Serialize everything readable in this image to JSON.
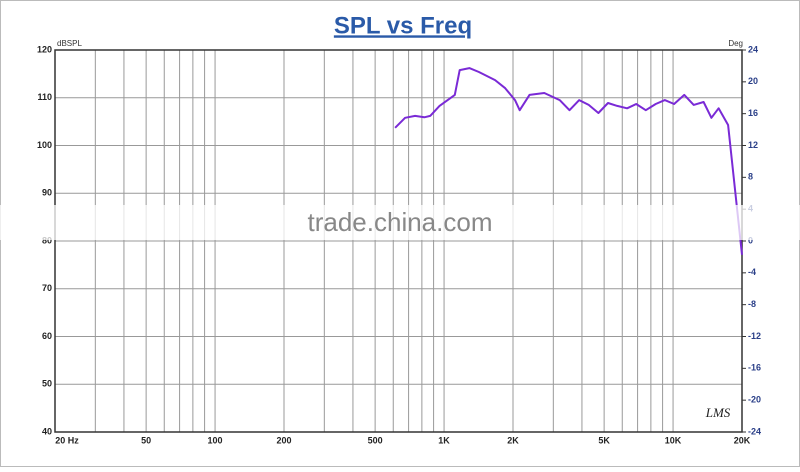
{
  "chart_data": {
    "type": "line",
    "title": "SPL vs Freq",
    "ylabel": "dBSPL",
    "y2label": "Deg",
    "watermark": "trade.china.com",
    "logo": "LMS",
    "xscale": "log",
    "xlim": [
      20,
      20000
    ],
    "xticks": [
      {
        "value": 20,
        "label": "20 Hz"
      },
      50,
      100,
      200,
      500,
      {
        "value": 1000,
        "label": "1K"
      },
      {
        "value": 2000,
        "label": "2K"
      },
      {
        "value": 5000,
        "label": "5K"
      },
      {
        "value": 10000,
        "label": "10K"
      },
      {
        "value": 20000,
        "label": "20K"
      }
    ],
    "xminor": [
      30,
      40,
      60,
      70,
      80,
      90,
      300,
      400,
      600,
      700,
      800,
      900,
      3000,
      4000,
      6000,
      7000,
      8000,
      9000
    ],
    "ylim": [
      40,
      120
    ],
    "yticks": [
      40,
      50,
      60,
      70,
      80,
      90,
      100,
      110,
      120
    ],
    "y2lim": [
      -24,
      24
    ],
    "y2ticks": [
      -24,
      -20,
      -16,
      -12,
      -8,
      -4,
      0,
      4,
      8,
      12,
      16,
      20,
      24
    ],
    "grid": true,
    "color": "#7a2ad6",
    "x": [
      611,
      676,
      747,
      820,
      870,
      955,
      1114,
      1170,
      1290,
      1420,
      1670,
      1850,
      2040,
      2140,
      2360,
      2740,
      3200,
      3530,
      3890,
      4280,
      4720,
      5200,
      5700,
      6300,
      6900,
      7600,
      8400,
      9200,
      10100,
      11200,
      12300,
      13600,
      14700,
      15800,
      17400,
      20000
    ],
    "values": [
      103.7,
      105.8,
      106.2,
      105.9,
      106.2,
      108.3,
      110.6,
      115.8,
      116.2,
      115.4,
      113.7,
      112,
      109.5,
      107.4,
      110.6,
      111,
      109.5,
      107.4,
      109.5,
      108.5,
      106.8,
      108.9,
      108.3,
      107.8,
      108.7,
      107.4,
      108.7,
      109.5,
      108.7,
      110.6,
      108.5,
      109.1,
      105.8,
      107.8,
      104.3,
      77.1
    ]
  }
}
